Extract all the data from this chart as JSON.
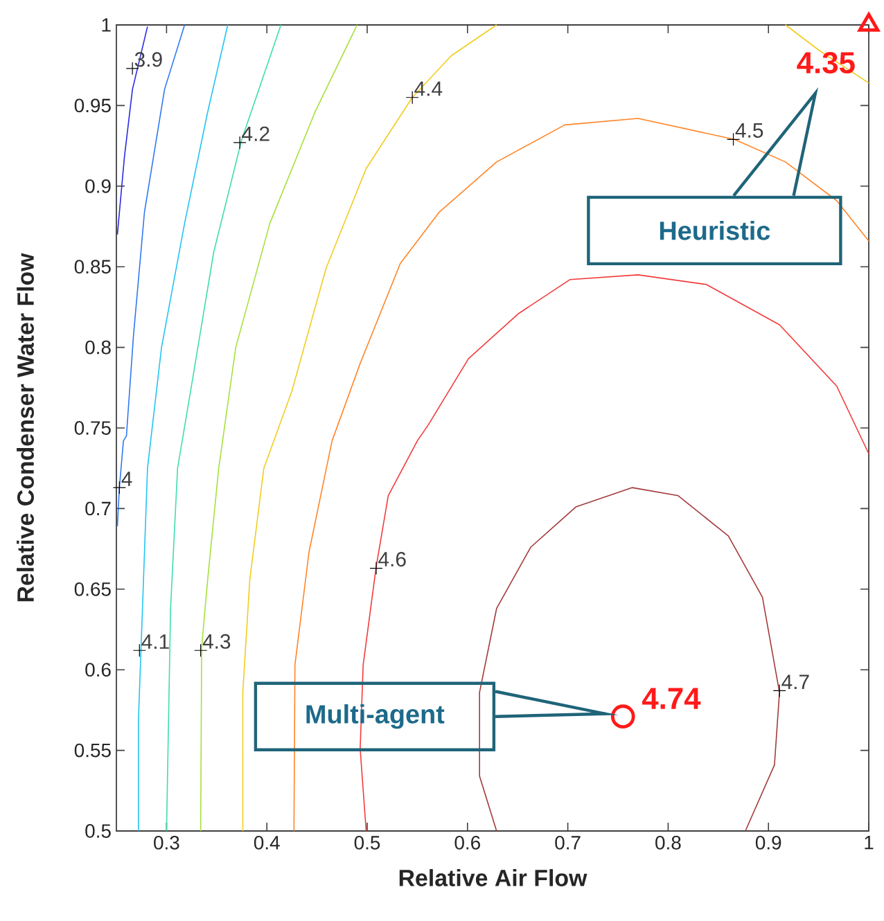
{
  "chart_data": {
    "type": "line",
    "xlabel": "Relative Air Flow",
    "ylabel": "Relative Condenser Water Flow",
    "xlim": [
      0.25,
      1
    ],
    "ylim": [
      0.5,
      1
    ],
    "xticks": [
      0.3,
      0.4,
      0.5,
      0.6,
      0.7,
      0.8,
      0.9,
      1
    ],
    "yticks": [
      0.5,
      0.55,
      0.6,
      0.65,
      0.7,
      0.75,
      0.8,
      0.85,
      0.9,
      0.95,
      1
    ],
    "series": [
      {
        "color": "#2a2ae0",
        "x": [
          0.251,
          0.258,
          0.266,
          0.281
        ],
        "values": [
          0.87,
          0.918,
          0.96,
          0.999
        ]
      },
      {
        "color": "#2f78f0",
        "x": [
          0.318,
          0.298,
          0.278,
          0.267,
          0.26,
          0.257,
          0.253,
          0.251
        ],
        "values": [
          1.0,
          0.96,
          0.884,
          0.807,
          0.745,
          0.742,
          0.713,
          0.689
        ]
      },
      {
        "color": "#22c4f2",
        "x": [
          0.361,
          0.341,
          0.318,
          0.295,
          0.281,
          0.276,
          0.272,
          0.272
        ],
        "values": [
          1.0,
          0.946,
          0.877,
          0.8,
          0.725,
          0.638,
          0.569,
          0.5
        ]
      },
      {
        "color": "#3fdcb0",
        "x": [
          0.414,
          0.375,
          0.347,
          0.324,
          0.311,
          0.304,
          0.3
        ],
        "values": [
          1.0,
          0.929,
          0.859,
          0.773,
          0.725,
          0.638,
          0.5
        ]
      },
      {
        "color": "#a6e03c",
        "x": [
          0.49,
          0.448,
          0.403,
          0.369,
          0.352,
          0.341,
          0.335,
          0.334
        ],
        "values": [
          1.0,
          0.946,
          0.877,
          0.8,
          0.725,
          0.656,
          0.614,
          0.5
        ]
      },
      {
        "color": "#f2cc1e",
        "x": [
          0.629,
          0.584,
          0.545,
          0.499,
          0.459,
          0.425,
          0.397,
          0.383,
          0.376,
          0.376
        ],
        "values": [
          1.0,
          0.981,
          0.955,
          0.911,
          0.849,
          0.773,
          0.725,
          0.656,
          0.586,
          0.5
        ]
      },
      {
        "color": "#f2cc1e",
        "x": [
          0.917,
          0.951,
          1.0
        ],
        "values": [
          1.0,
          0.984,
          0.964
        ]
      },
      {
        "color": "#ff8426",
        "x": [
          1.0,
          0.968,
          0.917,
          0.866,
          0.77,
          0.697,
          0.629,
          0.572,
          0.533,
          0.493,
          0.465,
          0.442,
          0.428,
          0.427
        ],
        "values": [
          0.866,
          0.891,
          0.915,
          0.929,
          0.942,
          0.938,
          0.915,
          0.884,
          0.852,
          0.79,
          0.742,
          0.673,
          0.603,
          0.5
        ]
      },
      {
        "color": "#f23a3a",
        "x": [
          1.0,
          0.968,
          0.911,
          0.838,
          0.77,
          0.702,
          0.651,
          0.601,
          0.561,
          0.55,
          0.521,
          0.509,
          0.496,
          0.493,
          0.499
        ],
        "values": [
          0.734,
          0.776,
          0.814,
          0.839,
          0.845,
          0.842,
          0.821,
          0.793,
          0.752,
          0.742,
          0.708,
          0.664,
          0.603,
          0.551,
          0.5
        ]
      },
      {
        "color": "#a23a3a",
        "x": [
          0.629,
          0.612,
          0.612,
          0.629,
          0.663,
          0.708,
          0.764,
          0.81,
          0.86,
          0.894,
          0.911,
          0.906,
          0.877
        ],
        "values": [
          0.5,
          0.534,
          0.586,
          0.638,
          0.676,
          0.701,
          0.713,
          0.708,
          0.683,
          0.645,
          0.586,
          0.541,
          0.5
        ]
      },
      {
        "type": "scatter",
        "color": "#ff1a1a",
        "marker": "triangle",
        "x": [
          1.0
        ],
        "values": [
          1.0
        ]
      },
      {
        "type": "scatter",
        "color": "#ff1a1a",
        "marker": "circle",
        "x": [
          0.755
        ],
        "values": [
          0.571
        ]
      }
    ],
    "annotations": [
      {
        "text": "3.9",
        "x": 0.266,
        "y": 0.973
      },
      {
        "text": "4",
        "x": 0.253,
        "y": 0.713
      },
      {
        "text": "4.1",
        "x": 0.273,
        "y": 0.612
      },
      {
        "text": "4.2",
        "x": 0.373,
        "y": 0.927
      },
      {
        "text": "4.3",
        "x": 0.334,
        "y": 0.612
      },
      {
        "text": "4.4",
        "x": 0.545,
        "y": 0.955
      },
      {
        "text": "4.5",
        "x": 0.865,
        "y": 0.929
      },
      {
        "text": "4.6",
        "x": 0.509,
        "y": 0.663
      },
      {
        "text": "4.7",
        "x": 0.911,
        "y": 0.587
      },
      {
        "text": "4.35",
        "x": 1.0,
        "y": 1.0
      },
      "Heuristic",
      {
        "text": "4.74",
        "x": 0.755,
        "y": 0.571
      },
      "Multi-agent"
    ]
  }
}
